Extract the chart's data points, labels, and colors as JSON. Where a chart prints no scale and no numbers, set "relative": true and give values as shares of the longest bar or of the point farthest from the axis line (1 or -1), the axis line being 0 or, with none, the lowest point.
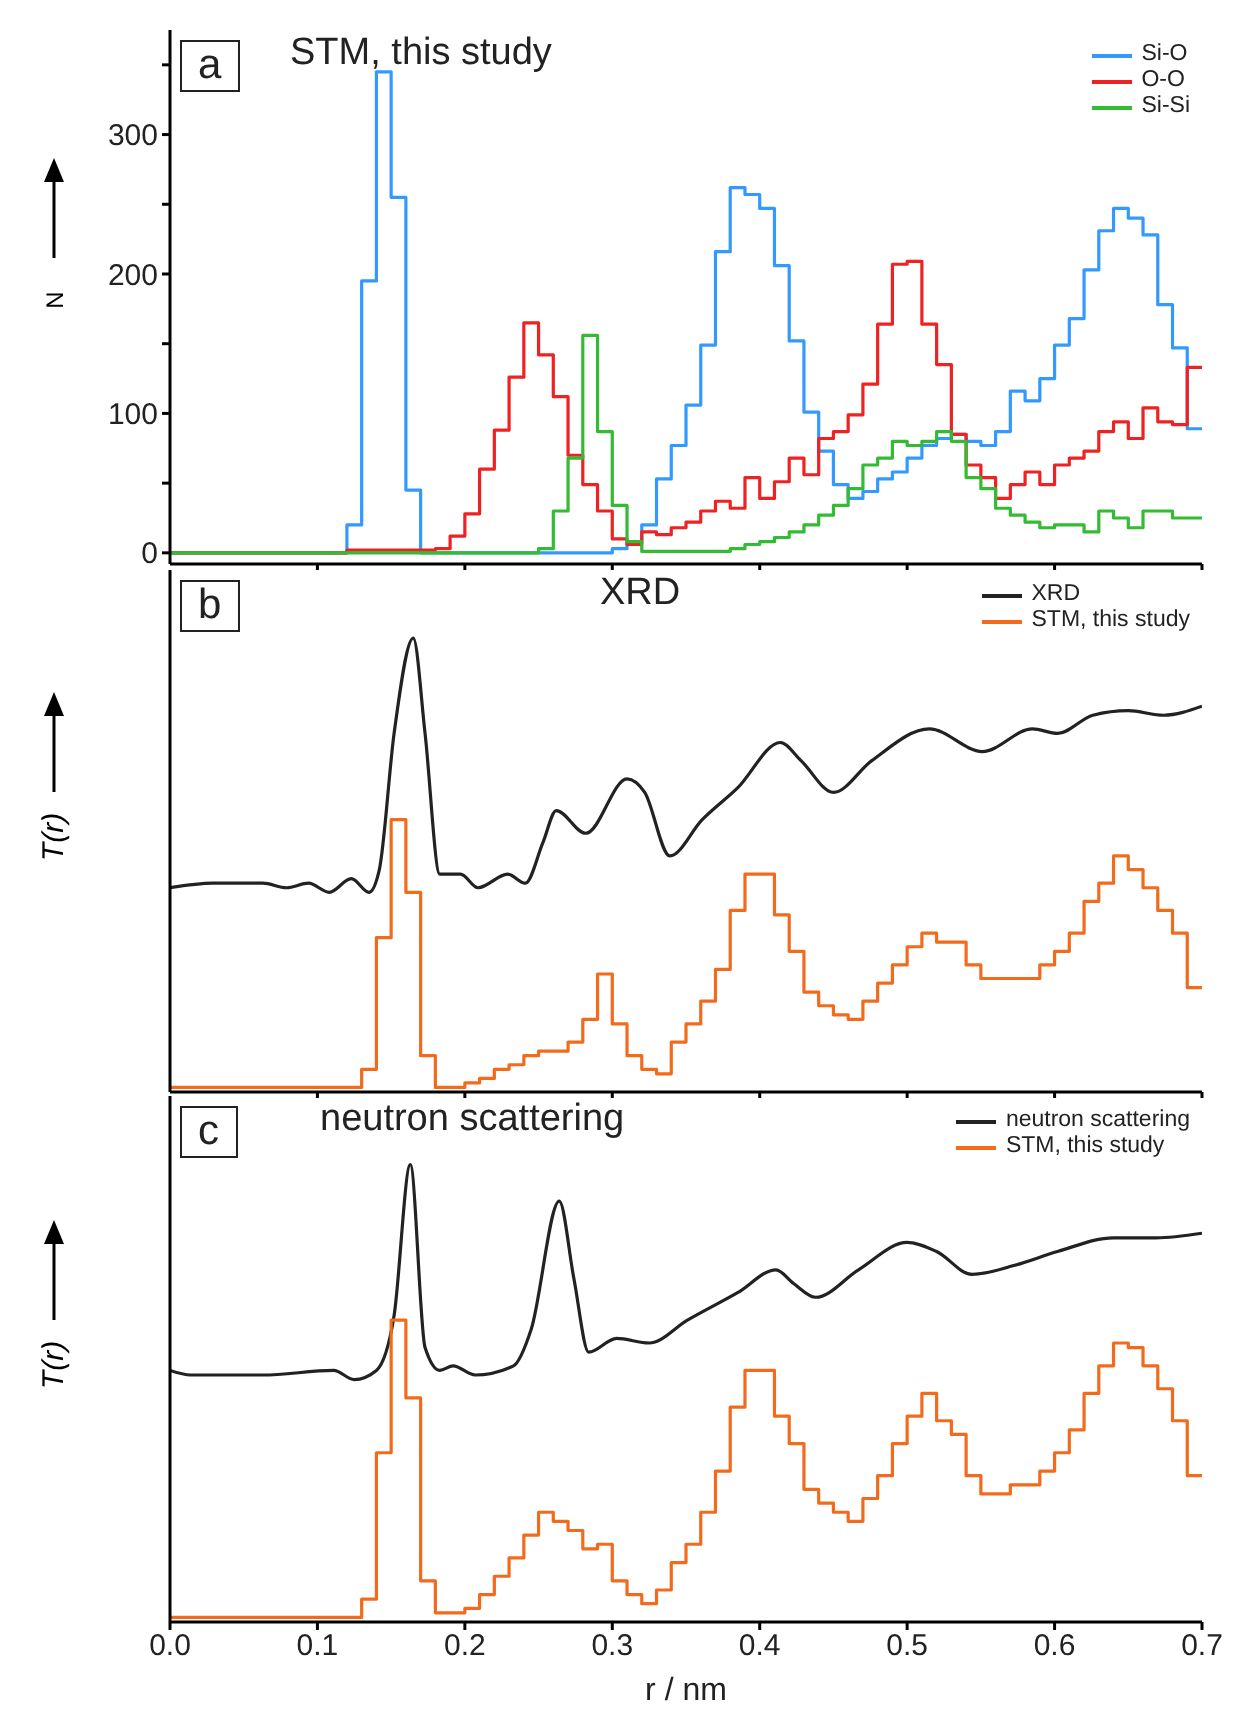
{
  "chart_data": [
    {
      "type": "histogram",
      "title": "STM, this study",
      "ylabel": "N",
      "annotations": [
        "a"
      ],
      "legend": "top right",
      "tick_labels": "y",
      "xlim": [
        0,
        0.7
      ],
      "xticks": [
        0.1,
        0.2,
        0.3,
        0.4,
        0.5,
        0.6,
        0.7
      ],
      "ylim": [
        -8,
        375
      ],
      "yticks": [
        0,
        {
          "value": 50,
          "label": null
        },
        100,
        {
          "value": 150,
          "label": null
        },
        200,
        {
          "value": 250,
          "label": null
        },
        300,
        {
          "value": 350,
          "label": null
        }
      ],
      "bins": [
        0,
        0.01,
        0.02,
        0.03,
        0.04,
        0.05,
        0.06,
        0.07,
        0.08,
        0.09,
        0.1,
        0.11,
        0.12,
        0.13,
        0.14,
        0.15,
        0.16,
        0.17,
        0.18,
        0.19,
        0.2,
        0.21,
        0.22,
        0.23,
        0.24,
        0.25,
        0.26,
        0.27,
        0.28,
        0.29,
        0.3,
        0.31,
        0.32,
        0.33,
        0.34,
        0.35,
        0.36,
        0.37,
        0.38,
        0.39,
        0.4,
        0.41,
        0.42,
        0.43,
        0.44,
        0.45,
        0.46,
        0.47,
        0.48,
        0.49,
        0.5,
        0.51,
        0.52,
        0.53,
        0.54,
        0.55,
        0.56,
        0.57,
        0.58,
        0.59,
        0.6,
        0.61,
        0.62,
        0.63,
        0.64,
        0.65,
        0.66,
        0.67,
        0.68,
        0.69,
        0.7
      ],
      "series": [
        {
          "name": "Si-O",
          "color": "#3399ff",
          "values": [
            0,
            0,
            0,
            0,
            0,
            0,
            0,
            0,
            0,
            0,
            0,
            0,
            20,
            195,
            345,
            255,
            45,
            0,
            0,
            0,
            0,
            0,
            0,
            0,
            0,
            0,
            0,
            0,
            0,
            0,
            3,
            8,
            20,
            53,
            77,
            106,
            149,
            216,
            262,
            257,
            247,
            206,
            152,
            101,
            73,
            49,
            39,
            44,
            53,
            58,
            68,
            77,
            82,
            85,
            80,
            77,
            87,
            116,
            109,
            125,
            149,
            168,
            203,
            231,
            247,
            240,
            228,
            178,
            147,
            89
          ]
        },
        {
          "name": "O-O",
          "color": "#ee2222",
          "values": [
            0,
            0,
            0,
            0,
            0,
            0,
            0,
            0,
            0,
            0,
            0,
            0,
            2,
            2,
            2,
            2,
            2,
            2,
            3,
            12,
            28,
            60,
            88,
            126,
            165,
            142,
            112,
            70,
            49,
            30,
            10,
            6,
            15,
            13,
            18,
            22,
            30,
            37,
            32,
            54,
            39,
            51,
            68,
            56,
            82,
            87,
            99,
            121,
            164,
            207,
            209,
            164,
            135,
            85,
            63,
            54,
            39,
            49,
            58,
            49,
            63,
            68,
            73,
            87,
            94,
            82,
            104,
            94,
            92,
            133
          ]
        },
        {
          "name": "Si-Si",
          "color": "#33bb33",
          "values": [
            0,
            0,
            0,
            0,
            0,
            0,
            0,
            0,
            0,
            0,
            0,
            0,
            0,
            0,
            0,
            0,
            0,
            0,
            0,
            0,
            0,
            0,
            0,
            0,
            0,
            3,
            30,
            68,
            156,
            87,
            34,
            8,
            1,
            1,
            1,
            1,
            1,
            1,
            3,
            6,
            8,
            11,
            15,
            20,
            27,
            34,
            46,
            63,
            68,
            80,
            77,
            80,
            87,
            80,
            54,
            46,
            32,
            27,
            22,
            18,
            20,
            20,
            15,
            30,
            25,
            18,
            30,
            30,
            25,
            25
          ]
        }
      ]
    },
    {
      "type": "line",
      "relative": true,
      "title": "XRD",
      "ylabel": "T(r)",
      "annotations": [
        "b"
      ],
      "legend": "top right",
      "tick_labels": false,
      "xlim": [
        0,
        0.7
      ],
      "xticks": [
        0.1,
        0.2,
        0.3,
        0.4,
        0.5,
        0.6,
        0.7
      ],
      "series": [
        {
          "name": "XRD",
          "color": "#222222",
          "x": [
            0,
            0.029,
            0.063,
            0.079,
            0.094,
            0.108,
            0.123,
            0.135,
            0.142,
            0.152,
            0.165,
            0.173,
            0.183,
            0.197,
            0.209,
            0.229,
            0.241,
            0.253,
            0.262,
            0.282,
            0.31,
            0.322,
            0.339,
            0.361,
            0.385,
            0.414,
            0.428,
            0.45,
            0.476,
            0.515,
            0.551,
            0.585,
            0.602,
            0.626,
            0.65,
            0.674,
            0.7
          ],
          "values": [
            0.45,
            0.46,
            0.46,
            0.45,
            0.46,
            0.44,
            0.47,
            0.44,
            0.49,
            0.79,
            1,
            0.79,
            0.48,
            0.48,
            0.45,
            0.48,
            0.46,
            0.55,
            0.62,
            0.57,
            0.69,
            0.66,
            0.52,
            0.6,
            0.67,
            0.77,
            0.73,
            0.66,
            0.73,
            0.8,
            0.75,
            0.8,
            0.79,
            0.83,
            0.84,
            0.83,
            0.85
          ]
        },
        {
          "name": "STM, this study",
          "color": "#f26b1d",
          "type": "step",
          "x": [
            0,
            0.13,
            0.14,
            0.15,
            0.16,
            0.17,
            0.18,
            0.2,
            0.21,
            0.22,
            0.23,
            0.24,
            0.25,
            0.27,
            0.28,
            0.29,
            0.3,
            0.31,
            0.32,
            0.33,
            0.34,
            0.35,
            0.36,
            0.37,
            0.38,
            0.39,
            0.41,
            0.42,
            0.43,
            0.44,
            0.45,
            0.46,
            0.47,
            0.48,
            0.49,
            0.5,
            0.51,
            0.52,
            0.54,
            0.55,
            0.57,
            0.59,
            0.6,
            0.61,
            0.62,
            0.63,
            0.64,
            0.65,
            0.66,
            0.67,
            0.68,
            0.69,
            0.7
          ],
          "values": [
            0.01,
            0.05,
            0.34,
            0.6,
            0.44,
            0.08,
            0.01,
            0.02,
            0.03,
            0.05,
            0.06,
            0.08,
            0.09,
            0.11,
            0.16,
            0.26,
            0.15,
            0.08,
            0.05,
            0.04,
            0.11,
            0.15,
            0.2,
            0.27,
            0.4,
            0.48,
            0.39,
            0.31,
            0.22,
            0.19,
            0.17,
            0.16,
            0.2,
            0.24,
            0.28,
            0.32,
            0.35,
            0.33,
            0.28,
            0.25,
            0.25,
            0.28,
            0.31,
            0.35,
            0.42,
            0.46,
            0.52,
            0.49,
            0.45,
            0.4,
            0.35,
            0.23,
            0.23
          ]
        }
      ]
    },
    {
      "type": "line",
      "relative": true,
      "title": "neutron scattering",
      "ylabel": "T(r)",
      "xlabel": "r / nm",
      "annotations": [
        "c"
      ],
      "legend": "top right",
      "tick_labels": "x",
      "xlim": [
        0,
        0.7
      ],
      "xticks": [
        {
          "value": 0,
          "label": "0.0"
        },
        0.1,
        0.2,
        0.3,
        0.4,
        0.5,
        0.6,
        0.7
      ],
      "series": [
        {
          "name": "neutron scattering",
          "color": "#222222",
          "x": [
            0,
            0.014,
            0.063,
            0.111,
            0.125,
            0.14,
            0.152,
            0.163,
            0.173,
            0.183,
            0.192,
            0.207,
            0.233,
            0.245,
            0.264,
            0.274,
            0.284,
            0.303,
            0.325,
            0.351,
            0.385,
            0.411,
            0.423,
            0.438,
            0.467,
            0.5,
            0.52,
            0.544,
            0.573,
            0.602,
            0.64,
            0.669,
            0.7
          ],
          "values": [
            0.55,
            0.54,
            0.54,
            0.55,
            0.53,
            0.55,
            0.67,
            1,
            0.6,
            0.55,
            0.56,
            0.54,
            0.56,
            0.64,
            0.92,
            0.75,
            0.59,
            0.62,
            0.61,
            0.66,
            0.72,
            0.77,
            0.74,
            0.71,
            0.77,
            0.83,
            0.81,
            0.76,
            0.78,
            0.81,
            0.84,
            0.84,
            0.85
          ]
        },
        {
          "name": "STM, this study",
          "color": "#f26b1d",
          "type": "step",
          "x": [
            0,
            0.13,
            0.14,
            0.15,
            0.16,
            0.17,
            0.18,
            0.2,
            0.21,
            0.22,
            0.23,
            0.24,
            0.25,
            0.26,
            0.27,
            0.28,
            0.29,
            0.3,
            0.31,
            0.32,
            0.33,
            0.34,
            0.35,
            0.36,
            0.37,
            0.38,
            0.39,
            0.41,
            0.42,
            0.43,
            0.44,
            0.45,
            0.46,
            0.47,
            0.48,
            0.49,
            0.5,
            0.51,
            0.52,
            0.53,
            0.54,
            0.55,
            0.57,
            0.59,
            0.6,
            0.61,
            0.62,
            0.63,
            0.64,
            0.65,
            0.66,
            0.67,
            0.68,
            0.69,
            0.7
          ],
          "values": [
            0.01,
            0.05,
            0.37,
            0.66,
            0.49,
            0.09,
            0.02,
            0.03,
            0.06,
            0.1,
            0.14,
            0.19,
            0.24,
            0.22,
            0.2,
            0.16,
            0.17,
            0.09,
            0.06,
            0.04,
            0.07,
            0.13,
            0.17,
            0.24,
            0.33,
            0.47,
            0.55,
            0.45,
            0.39,
            0.29,
            0.26,
            0.24,
            0.22,
            0.27,
            0.32,
            0.39,
            0.45,
            0.5,
            0.44,
            0.41,
            0.32,
            0.28,
            0.3,
            0.33,
            0.37,
            0.42,
            0.5,
            0.56,
            0.61,
            0.6,
            0.56,
            0.51,
            0.44,
            0.32,
            0.32
          ]
        }
      ]
    }
  ]
}
